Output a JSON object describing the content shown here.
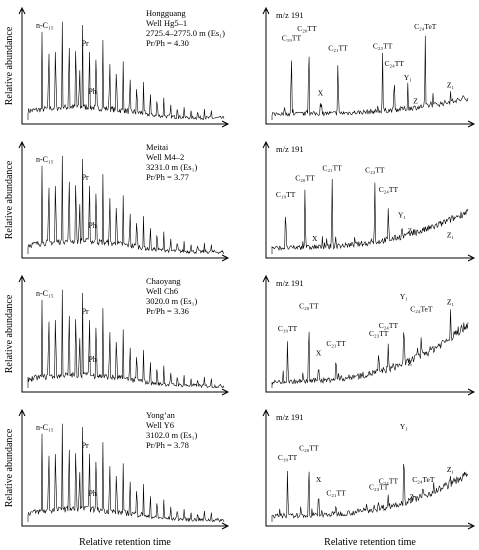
{
  "x_axis_label_left": "Relative retention time",
  "x_axis_label_right": "Relative retention time",
  "y_axis_label": "Relative abundance",
  "mz_label": "m/z 191",
  "panels": [
    {
      "row": 0,
      "name": "Hongguang",
      "well": "Well Hg5–1",
      "depth": "2725.4–2775.0 m (Es₁)",
      "ratio": "Pr/Ph = 4.30",
      "nc_label": "n-C₁₅",
      "pr_label": "Pr",
      "ph_label": "Ph",
      "terpanes": [
        {
          "label": "C₁₉TT",
          "pos": 0.1,
          "h": 0.78
        },
        {
          "label": "C₂₀TT",
          "pos": 0.19,
          "h": 0.88,
          "lx": 0.18
        },
        {
          "label": "X",
          "pos": 0.25,
          "h": 0.22
        },
        {
          "label": "C₂₁TT",
          "pos": 0.34,
          "h": 0.68
        },
        {
          "label": "C₂₃TT",
          "pos": 0.57,
          "h": 0.7
        },
        {
          "label": "C₂₄TT",
          "pos": 0.63,
          "h": 0.52
        },
        {
          "label": "Y₁",
          "pos": 0.7,
          "h": 0.38
        },
        {
          "label": "Z",
          "pos": 0.74,
          "h": 0.14
        },
        {
          "label": "C₂₄TeT",
          "pos": 0.79,
          "h": 0.9
        },
        {
          "label": "Z₁",
          "pos": 0.92,
          "h": 0.3
        }
      ]
    },
    {
      "row": 1,
      "name": "Meitai",
      "well": "Well M4–2",
      "depth": "3231.0 m (Es₁)",
      "ratio": "Pr/Ph = 3.77",
      "nc_label": "n-C₁₅",
      "pr_label": "Pr",
      "ph_label": "Ph",
      "terpanes": [
        {
          "label": "C₁₉TT",
          "pos": 0.07,
          "h": 0.55
        },
        {
          "label": "C₂₀TT",
          "pos": 0.17,
          "h": 0.72
        },
        {
          "label": "X",
          "pos": 0.22,
          "h": 0.1
        },
        {
          "label": "C₂₁TT",
          "pos": 0.31,
          "h": 0.82
        },
        {
          "label": "C₂₃TT",
          "pos": 0.53,
          "h": 0.8
        },
        {
          "label": "C₂₄TT",
          "pos": 0.6,
          "h": 0.6
        },
        {
          "label": "Y₁",
          "pos": 0.67,
          "h": 0.34
        },
        {
          "label": "Z",
          "pos": 0.71,
          "h": 0.18
        },
        {
          "label": "Z₁",
          "pos": 0.92,
          "h": 0.14
        }
      ]
    },
    {
      "row": 2,
      "name": "Chaoyang",
      "well": "Well Ch6",
      "depth": "3020.0 m (Es₁)",
      "ratio": "Pr/Ph = 3.36",
      "nc_label": "n-C₁₅",
      "pr_label": "Pr",
      "ph_label": "Ph",
      "terpanes": [
        {
          "label": "C₁₉TT",
          "pos": 0.08,
          "h": 0.55
        },
        {
          "label": "C₂₀TT",
          "pos": 0.19,
          "h": 0.78
        },
        {
          "label": "X",
          "pos": 0.24,
          "h": 0.3
        },
        {
          "label": "C₂₁TT",
          "pos": 0.33,
          "h": 0.4
        },
        {
          "label": "C₂₃TT",
          "pos": 0.55,
          "h": 0.5
        },
        {
          "label": "C₂₄TT",
          "pos": 0.6,
          "h": 0.58
        },
        {
          "label": "Y₁",
          "pos": 0.68,
          "h": 0.88
        },
        {
          "label": "Z",
          "pos": 0.71,
          "h": 0.2
        },
        {
          "label": "C₂₄TeT",
          "pos": 0.77,
          "h": 0.75
        },
        {
          "label": "Z₁",
          "pos": 0.92,
          "h": 0.82
        }
      ]
    },
    {
      "row": 3,
      "name": "Yong’an",
      "well": "Well Y6",
      "depth": "3102.0 m (Es₁)",
      "ratio": "Pr/Ph = 3.78",
      "nc_label": "n-C₁₅",
      "pr_label": "Pr",
      "ph_label": "Ph",
      "terpanes": [
        {
          "label": "C₁₉TT",
          "pos": 0.08,
          "h": 0.6
        },
        {
          "label": "C₂₀TT",
          "pos": 0.19,
          "h": 0.7
        },
        {
          "label": "X",
          "pos": 0.24,
          "h": 0.38
        },
        {
          "label": "C₂₁TT",
          "pos": 0.33,
          "h": 0.24
        },
        {
          "label": "C₂₃TT",
          "pos": 0.55,
          "h": 0.3
        },
        {
          "label": "C₂₄TT",
          "pos": 0.6,
          "h": 0.36
        },
        {
          "label": "Y₁",
          "pos": 0.68,
          "h": 0.92
        },
        {
          "label": "Z",
          "pos": 0.72,
          "h": 0.2
        },
        {
          "label": "C₂₄TeT",
          "pos": 0.78,
          "h": 0.38
        },
        {
          "label": "Z₁",
          "pos": 0.92,
          "h": 0.48
        }
      ]
    }
  ],
  "chart_data": [
    {
      "type": "line",
      "panel": "Hongguang left",
      "title": "Hongguang",
      "xlabel": "Relative retention time",
      "ylabel": "Relative abundance",
      "series_description": "n-alkane chromatogram"
    },
    {
      "type": "line",
      "panel": "Hongguang right",
      "title": "m/z 191",
      "xlabel": "Relative retention time",
      "series_description": "terpane mass chromatogram"
    },
    {
      "type": "line",
      "panel": "Meitai left",
      "title": "Meitai",
      "xlabel": "Relative retention time",
      "ylabel": "Relative abundance"
    },
    {
      "type": "line",
      "panel": "Meitai right",
      "title": "m/z 191",
      "xlabel": "Relative retention time"
    },
    {
      "type": "line",
      "panel": "Chaoyang left",
      "title": "Chaoyang",
      "xlabel": "Relative retention time",
      "ylabel": "Relative abundance"
    },
    {
      "type": "line",
      "panel": "Chaoyang right",
      "title": "m/z 191",
      "xlabel": "Relative retention time"
    },
    {
      "type": "line",
      "panel": "Yong’an left",
      "title": "Yong’an",
      "xlabel": "Relative retention time",
      "ylabel": "Relative abundance"
    },
    {
      "type": "line",
      "panel": "Yong’an right",
      "title": "m/z 191",
      "xlabel": "Relative retention time"
    }
  ]
}
